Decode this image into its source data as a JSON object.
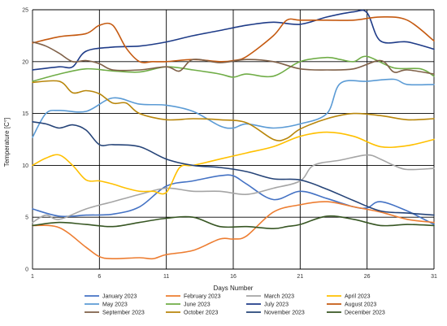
{
  "chart_data": {
    "type": "line",
    "xlabel": "Days Number",
    "ylabel": "Temperature [C°]",
    "xlim": [
      1,
      31
    ],
    "ylim": [
      0,
      25
    ],
    "xticks": [
      1,
      6,
      11,
      16,
      21,
      26,
      31
    ],
    "yticks": [
      0,
      5,
      10,
      15,
      20,
      25
    ],
    "grid": true,
    "legend_position": "bottom",
    "series": [
      {
        "name": "January 2023",
        "color": "#4472c4",
        "x": [
          1,
          3,
          5,
          7,
          9,
          11,
          13,
          15,
          16,
          17,
          19,
          21,
          23,
          25,
          26,
          27,
          29,
          31
        ],
        "y": [
          5.8,
          5.1,
          5.2,
          5.3,
          6.0,
          8.0,
          8.5,
          9.0,
          9.0,
          8.2,
          6.7,
          7.5,
          6.8,
          6.0,
          5.9,
          6.5,
          5.6,
          4.3
        ]
      },
      {
        "name": "February 2023",
        "color": "#ed7d31",
        "x": [
          1,
          3,
          5,
          6,
          7,
          9,
          10,
          11,
          13,
          15,
          16,
          17,
          19,
          21,
          23,
          25,
          27,
          29,
          31
        ],
        "y": [
          4.2,
          4.0,
          2.1,
          1.2,
          1.0,
          1.1,
          1.0,
          1.4,
          1.8,
          2.9,
          2.9,
          3.2,
          5.5,
          6.2,
          6.5,
          6.0,
          5.5,
          4.8,
          4.5
        ]
      },
      {
        "name": "March 2023",
        "color": "#a5a5a5",
        "x": [
          1,
          2,
          3,
          5,
          7,
          9,
          11,
          13,
          15,
          17,
          19,
          21,
          22,
          24,
          26,
          27,
          28,
          29,
          31
        ],
        "y": [
          4.5,
          5.2,
          4.8,
          5.8,
          6.5,
          7.2,
          7.8,
          7.5,
          7.5,
          7.2,
          7.8,
          8.5,
          10.0,
          10.5,
          11.0,
          10.6,
          10.0,
          9.6,
          9.7
        ]
      },
      {
        "name": "April 2023",
        "color": "#ffc000",
        "x": [
          1,
          2,
          3,
          4,
          5,
          6,
          7,
          8,
          9,
          10,
          11,
          12,
          13,
          15,
          17,
          19,
          21,
          23,
          25,
          27,
          29,
          31
        ],
        "y": [
          10.0,
          10.7,
          11.0,
          10.0,
          8.6,
          8.5,
          8.2,
          7.8,
          7.5,
          7.5,
          7.4,
          9.8,
          10.0,
          10.6,
          11.2,
          11.8,
          12.8,
          13.2,
          12.8,
          11.8,
          11.9,
          12.5
        ]
      },
      {
        "name": "May 2023",
        "color": "#5b9bd5",
        "x": [
          1,
          2,
          3,
          5,
          7,
          9,
          11,
          13,
          15,
          16,
          17,
          19,
          21,
          23,
          24,
          26,
          28,
          29,
          31
        ],
        "y": [
          12.7,
          15.0,
          15.3,
          15.2,
          16.5,
          15.9,
          15.8,
          15.2,
          13.8,
          13.6,
          14.0,
          13.6,
          14.0,
          15.0,
          17.9,
          18.1,
          18.3,
          17.8,
          17.8
        ]
      },
      {
        "name": "June 2023",
        "color": "#70ad47",
        "x": [
          1,
          3,
          5,
          7,
          9,
          11,
          13,
          15,
          16,
          17,
          19,
          21,
          23,
          24,
          25,
          26,
          28,
          30,
          31
        ],
        "y": [
          18.1,
          18.8,
          19.3,
          19.1,
          19.0,
          19.5,
          19.2,
          18.8,
          18.5,
          18.8,
          18.6,
          20.0,
          20.4,
          20.2,
          20.0,
          20.5,
          19.4,
          19.3,
          18.6
        ]
      },
      {
        "name": "July 2023",
        "color": "#1f3c88",
        "x": [
          1,
          3,
          4,
          5,
          7,
          9,
          11,
          13,
          15,
          17,
          19,
          21,
          23,
          25,
          26,
          27,
          29,
          31
        ],
        "y": [
          19.2,
          19.5,
          19.5,
          21.0,
          21.4,
          21.5,
          21.9,
          22.5,
          23.0,
          23.5,
          23.8,
          23.6,
          24.3,
          24.8,
          24.7,
          22.0,
          21.9,
          21.2
        ]
      },
      {
        "name": "August 2023",
        "color": "#c55a11",
        "x": [
          1,
          3,
          5,
          6,
          7,
          8,
          9,
          10,
          11,
          13,
          15,
          16,
          17,
          19,
          20,
          21,
          23,
          25,
          27,
          29,
          31
        ],
        "y": [
          21.8,
          22.4,
          22.7,
          23.5,
          23.5,
          21.3,
          20.0,
          20.0,
          20.0,
          20.2,
          20.0,
          20.1,
          20.5,
          22.5,
          24.0,
          24.0,
          24.0,
          24.0,
          24.3,
          24.0,
          22.0
        ]
      },
      {
        "name": "September 2023",
        "color": "#7f6048",
        "x": [
          1,
          2,
          3,
          4,
          5,
          6,
          7,
          9,
          11,
          12,
          13,
          15,
          17,
          19,
          21,
          23,
          25,
          27,
          28,
          29,
          31
        ],
        "y": [
          21.9,
          21.5,
          20.8,
          20.0,
          20.1,
          19.8,
          19.2,
          19.2,
          19.5,
          19.1,
          20.2,
          19.9,
          20.2,
          20.0,
          19.3,
          19.2,
          19.3,
          20.1,
          19.0,
          19.2,
          18.8
        ]
      },
      {
        "name": "October 2023",
        "color": "#b8860b",
        "x": [
          1,
          3,
          4,
          5,
          6,
          7,
          8,
          9,
          11,
          13,
          15,
          17,
          19,
          20,
          21,
          23,
          25,
          27,
          29,
          31
        ],
        "y": [
          18.0,
          18.1,
          17.0,
          17.2,
          16.9,
          16.0,
          16.0,
          15.0,
          14.4,
          14.5,
          14.4,
          14.1,
          12.5,
          12.6,
          13.5,
          14.5,
          15.0,
          14.8,
          14.4,
          14.5
        ]
      },
      {
        "name": "November 2023",
        "color": "#264478",
        "x": [
          1,
          2,
          3,
          4,
          5,
          6,
          7,
          9,
          11,
          13,
          15,
          17,
          19,
          21,
          23,
          25,
          27,
          29,
          31
        ],
        "y": [
          14.2,
          14.0,
          13.6,
          13.9,
          13.4,
          12.0,
          12.0,
          11.8,
          10.6,
          10.0,
          9.8,
          9.4,
          8.7,
          8.6,
          7.7,
          6.6,
          5.6,
          5.4,
          5.2
        ]
      },
      {
        "name": "December 2023",
        "color": "#375623",
        "x": [
          1,
          3,
          5,
          7,
          9,
          11,
          13,
          15,
          17,
          19,
          20,
          21,
          23,
          25,
          27,
          29,
          31
        ],
        "y": [
          4.2,
          4.5,
          4.3,
          4.1,
          4.5,
          4.9,
          5.0,
          4.1,
          4.1,
          3.9,
          4.1,
          4.3,
          5.1,
          4.8,
          4.2,
          4.3,
          4.2
        ]
      }
    ]
  }
}
